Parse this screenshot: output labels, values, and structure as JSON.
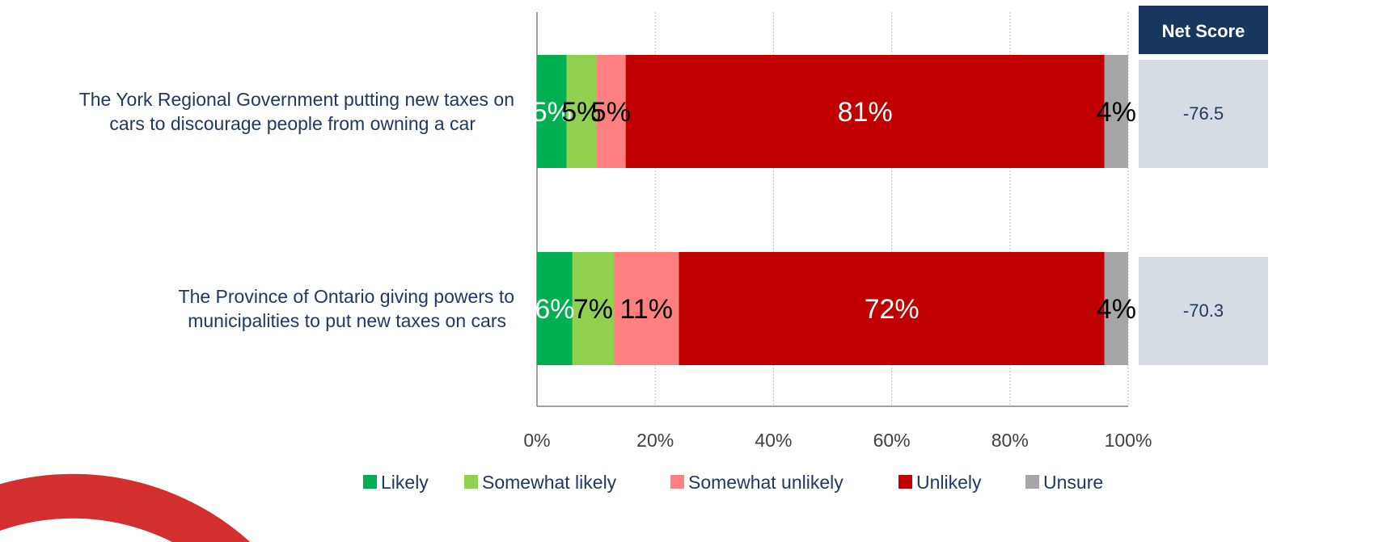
{
  "chart_data": {
    "type": "bar",
    "orientation": "horizontal",
    "stacked": true,
    "categories": [
      "The York Regional Government putting new taxes on cars to discourage people from owning a car",
      "The Province of Ontario giving powers to municipalities to put new taxes on cars"
    ],
    "category_lines": [
      [
        "The York Regional Government putting new taxes on",
        "cars to discourage people from owning a car"
      ],
      [
        "The Province of Ontario giving powers to",
        "municipalities to put new taxes on cars"
      ]
    ],
    "series": [
      {
        "name": "Likely",
        "color": "#00b050",
        "label_color": "#ffffff",
        "values": [
          5,
          6
        ],
        "labels": [
          "5%",
          "6%"
        ]
      },
      {
        "name": "Somewhat likely",
        "color": "#92d050",
        "label_color": "#000000",
        "values": [
          5,
          7
        ],
        "labels": [
          "5%",
          "7%"
        ]
      },
      {
        "name": "Somewhat unlikely",
        "color": "#ff8080",
        "label_color": "#000000",
        "values": [
          5,
          11
        ],
        "labels": [
          "5%",
          "11%"
        ]
      },
      {
        "name": "Unlikely",
        "color": "#c00000",
        "label_color": "#ffffff",
        "values": [
          81,
          72
        ],
        "labels": [
          "81%",
          "72%"
        ]
      },
      {
        "name": "Unsure",
        "color": "#a6a6a6",
        "label_color": "#000000",
        "values": [
          4,
          4
        ],
        "labels": [
          "4%",
          "4%"
        ]
      }
    ],
    "xlim": [
      0,
      100
    ],
    "xticks": [
      "0%",
      "20%",
      "40%",
      "60%",
      "80%",
      "100%"
    ],
    "xtick_values": [
      0,
      20,
      40,
      60,
      80,
      100
    ],
    "grid": "vertical dotted",
    "legend_position": "bottom",
    "net_score": {
      "header": "Net Score",
      "values": [
        "-76.5",
        "-70.3"
      ],
      "header_color": "#17375e",
      "cell_color": "#d6dce4"
    },
    "text_color": "#1f3864",
    "decoration_color": "#d32f2f"
  }
}
